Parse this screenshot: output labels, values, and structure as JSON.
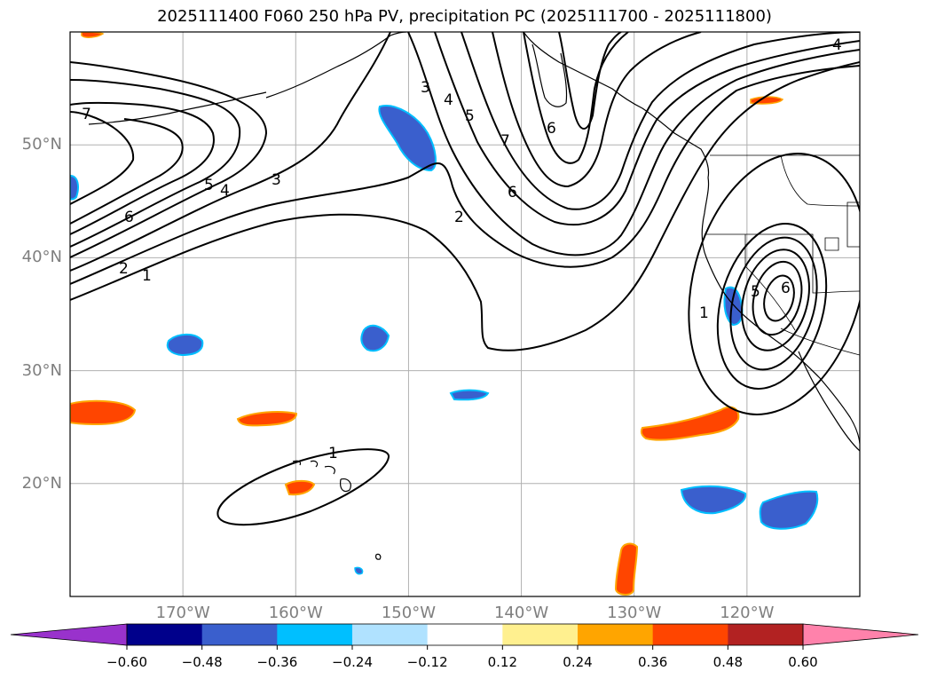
{
  "title": "2025111400 F060 250 hPa PV, precipitation PC (2025111700 - 2025111800)",
  "map": {
    "lon_range": [
      -180,
      -110
    ],
    "lat_range": [
      10,
      60
    ],
    "lat_ticks": [
      {
        "value": 50,
        "label": "50°N"
      },
      {
        "value": 40,
        "label": "40°N"
      },
      {
        "value": 30,
        "label": "30°N"
      },
      {
        "value": 20,
        "label": "20°N"
      }
    ],
    "lon_ticks": [
      {
        "value": -170,
        "label": "170°W"
      },
      {
        "value": -160,
        "label": "160°W"
      },
      {
        "value": -150,
        "label": "150°W"
      },
      {
        "value": -140,
        "label": "140°W"
      },
      {
        "value": -130,
        "label": "130°W"
      },
      {
        "value": -120,
        "label": "120°W"
      }
    ],
    "grid": true,
    "pv_contour_labels": [
      "1",
      "2",
      "3",
      "4",
      "5",
      "6",
      "7"
    ]
  },
  "colorbar": {
    "ticks": [
      "−0.60",
      "−0.48",
      "−0.36",
      "−0.24",
      "−0.12",
      "0.12",
      "0.24",
      "0.36",
      "0.48",
      "0.60"
    ],
    "colors": [
      "#9932cc",
      "#00008b",
      "#3a5fcd",
      "#00bfff",
      "#b0e2ff",
      "#ffffff",
      "#fff08f",
      "#ffa500",
      "#ff4500",
      "#b22222",
      "#ff82ab"
    ]
  },
  "colors": {
    "neg_strong": "#3a5fcd",
    "neg_light": "#00bfff",
    "pos_strong": "#ff4500",
    "pos_light": "#ffa500",
    "grid": "#b0b0b0",
    "tick_label": "#7f7f7f"
  }
}
